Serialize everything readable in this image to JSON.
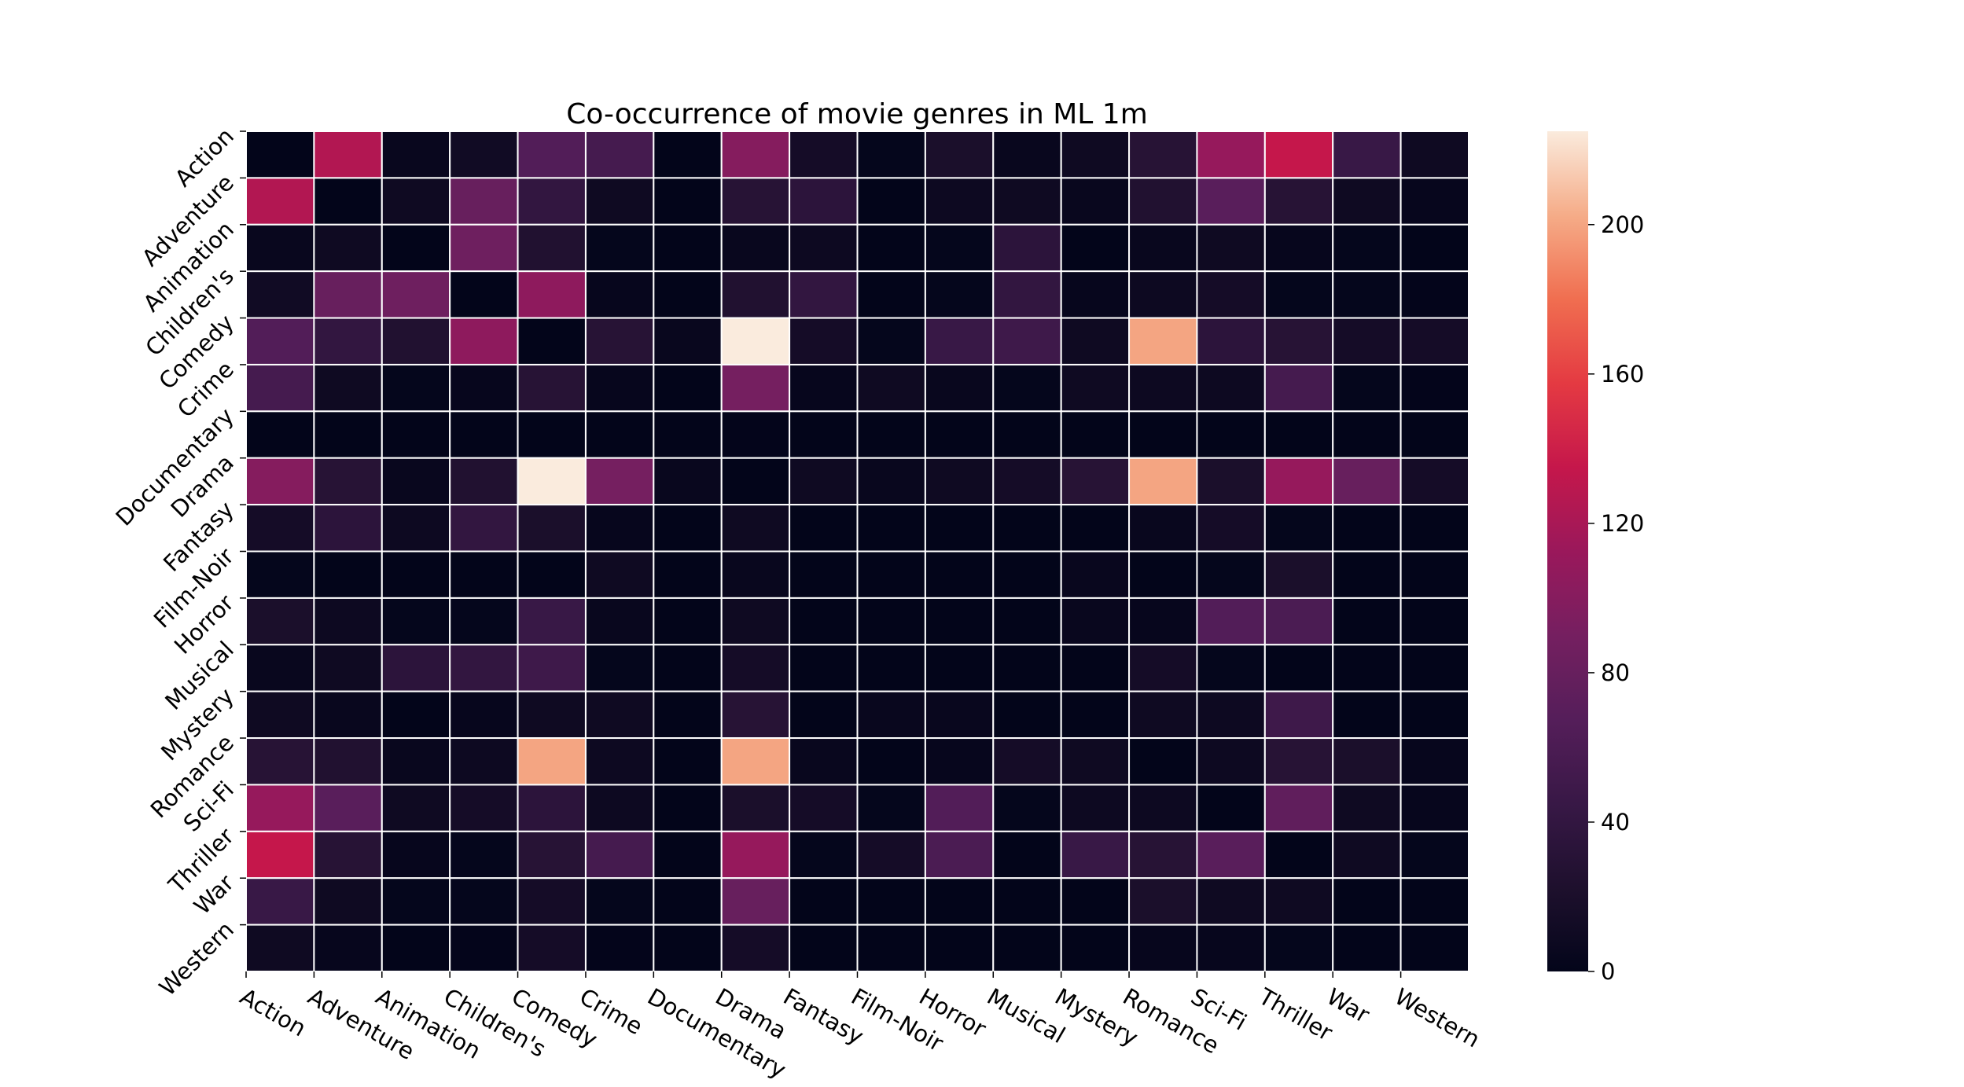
{
  "chart_data": {
    "type": "heatmap",
    "title": "Co-occurrence of movie genres in ML 1m",
    "xlabel": "",
    "ylabel": "",
    "x_categories": [
      "Action",
      "Adventure",
      "Animation",
      "Children's",
      "Comedy",
      "Crime",
      "Documentary",
      "Drama",
      "Fantasy",
      "Film-Noir",
      "Horror",
      "Musical",
      "Mystery",
      "Romance",
      "Sci-Fi",
      "Thriller",
      "War",
      "Western"
    ],
    "y_categories": [
      "Action",
      "Adventure",
      "Animation",
      "Children's",
      "Comedy",
      "Crime",
      "Documentary",
      "Drama",
      "Fantasy",
      "Film-Noir",
      "Horror",
      "Musical",
      "Mystery",
      "Romance",
      "Sci-Fi",
      "Thriller",
      "War",
      "Western"
    ],
    "values": [
      [
        0,
        125,
        5,
        12,
        65,
        55,
        0,
        100,
        15,
        2,
        20,
        5,
        10,
        30,
        110,
        135,
        45,
        10
      ],
      [
        125,
        0,
        10,
        80,
        40,
        10,
        0,
        30,
        35,
        0,
        8,
        10,
        5,
        25,
        70,
        30,
        10,
        3
      ],
      [
        5,
        10,
        0,
        85,
        25,
        2,
        0,
        5,
        8,
        0,
        2,
        35,
        0,
        5,
        10,
        3,
        2,
        0
      ],
      [
        12,
        80,
        85,
        0,
        105,
        3,
        0,
        25,
        40,
        0,
        2,
        40,
        3,
        8,
        15,
        2,
        2,
        1
      ],
      [
        65,
        40,
        25,
        105,
        0,
        30,
        5,
        225,
        15,
        2,
        45,
        50,
        10,
        200,
        35,
        30,
        15,
        15
      ],
      [
        55,
        10,
        2,
        3,
        30,
        3,
        0,
        90,
        3,
        10,
        5,
        2,
        10,
        8,
        8,
        55,
        2,
        1
      ],
      [
        0,
        0,
        0,
        0,
        0,
        0,
        0,
        1,
        0,
        0,
        0,
        0,
        0,
        0,
        0,
        0,
        0,
        0
      ],
      [
        100,
        30,
        5,
        25,
        225,
        90,
        5,
        0,
        10,
        5,
        10,
        15,
        30,
        200,
        20,
        110,
        80,
        15
      ],
      [
        15,
        35,
        8,
        40,
        20,
        3,
        0,
        10,
        0,
        0,
        0,
        0,
        0,
        5,
        15,
        2,
        0,
        0
      ],
      [
        2,
        0,
        0,
        0,
        0,
        10,
        0,
        5,
        0,
        0,
        0,
        0,
        5,
        0,
        2,
        20,
        0,
        0
      ],
      [
        20,
        8,
        2,
        2,
        45,
        5,
        0,
        10,
        0,
        0,
        0,
        0,
        5,
        3,
        65,
        60,
        0,
        0
      ],
      [
        5,
        10,
        35,
        40,
        50,
        2,
        0,
        15,
        0,
        0,
        0,
        0,
        0,
        15,
        2,
        0,
        0,
        0
      ],
      [
        10,
        5,
        0,
        3,
        10,
        10,
        0,
        30,
        0,
        5,
        5,
        0,
        0,
        10,
        8,
        50,
        0,
        0
      ],
      [
        30,
        25,
        5,
        8,
        200,
        8,
        0,
        200,
        5,
        0,
        3,
        15,
        10,
        0,
        8,
        30,
        20,
        3
      ],
      [
        110,
        70,
        10,
        15,
        35,
        8,
        0,
        20,
        15,
        2,
        65,
        2,
        8,
        8,
        0,
        75,
        10,
        3
      ],
      [
        135,
        30,
        3,
        2,
        30,
        55,
        0,
        110,
        2,
        15,
        60,
        0,
        45,
        30,
        70,
        0,
        10,
        2
      ],
      [
        45,
        10,
        2,
        2,
        15,
        2,
        0,
        80,
        0,
        0,
        0,
        0,
        0,
        20,
        10,
        10,
        0,
        0
      ],
      [
        10,
        3,
        0,
        1,
        15,
        1,
        0,
        15,
        0,
        0,
        0,
        0,
        0,
        3,
        3,
        2,
        0,
        0
      ]
    ],
    "vmin": 0,
    "vmax": 225,
    "colorbar_ticks": [
      0,
      40,
      80,
      120,
      160,
      200
    ],
    "colormap": "rocket",
    "grid_color": "#ffffff"
  }
}
